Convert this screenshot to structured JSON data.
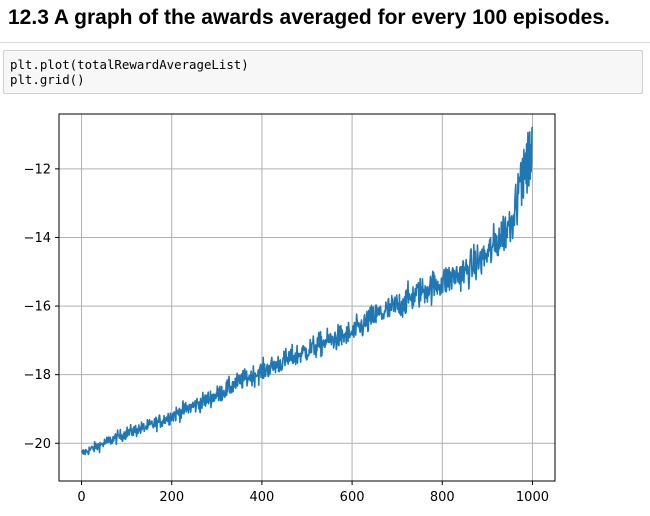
{
  "heading": {
    "title": "12.3 A graph of the awards averaged for every 100 episodes."
  },
  "code_cell": {
    "lines": [
      "plt.plot(totalRewardAverageList)",
      "plt.grid()"
    ]
  },
  "colors": {
    "line": "#1f77b4",
    "grid": "#b0b0b0",
    "code_background": "#f7f7f7"
  },
  "chart_data": {
    "type": "line",
    "title": "",
    "xlabel": "",
    "ylabel": "",
    "grid": true,
    "legend": "none",
    "xlim": [
      -50,
      1050
    ],
    "ylim": [
      -21.1,
      -10.4
    ],
    "x_ticks": [
      0,
      200,
      400,
      600,
      800,
      1000
    ],
    "x_tick_labels": [
      "0",
      "200",
      "400",
      "600",
      "800",
      "1000"
    ],
    "y_ticks": [
      -12,
      -14,
      -16,
      -18,
      -20
    ],
    "y_tick_labels": [
      "−12",
      "−14",
      "−16",
      "−18",
      "−20"
    ],
    "series": [
      {
        "x": [
          0,
          50,
          100,
          150,
          200,
          250,
          300,
          350,
          400,
          450,
          500,
          550,
          600,
          650,
          700,
          750,
          800,
          850,
          900,
          950,
          1000
        ],
        "y": [
          -20.3,
          -20.0,
          -19.7,
          -19.5,
          -19.2,
          -18.9,
          -18.6,
          -18.2,
          -17.9,
          -17.6,
          -17.3,
          -17.0,
          -16.8,
          -16.3,
          -16.0,
          -15.6,
          -15.3,
          -15.0,
          -14.5,
          -13.6,
          -11.5
        ],
        "noise": [
          0.12,
          0.15,
          0.17,
          0.18,
          0.2,
          0.22,
          0.24,
          0.25,
          0.27,
          0.29,
          0.31,
          0.32,
          0.34,
          0.36,
          0.38,
          0.4,
          0.42,
          0.45,
          0.5,
          0.6,
          0.75
        ],
        "points": 1001
      }
    ]
  }
}
